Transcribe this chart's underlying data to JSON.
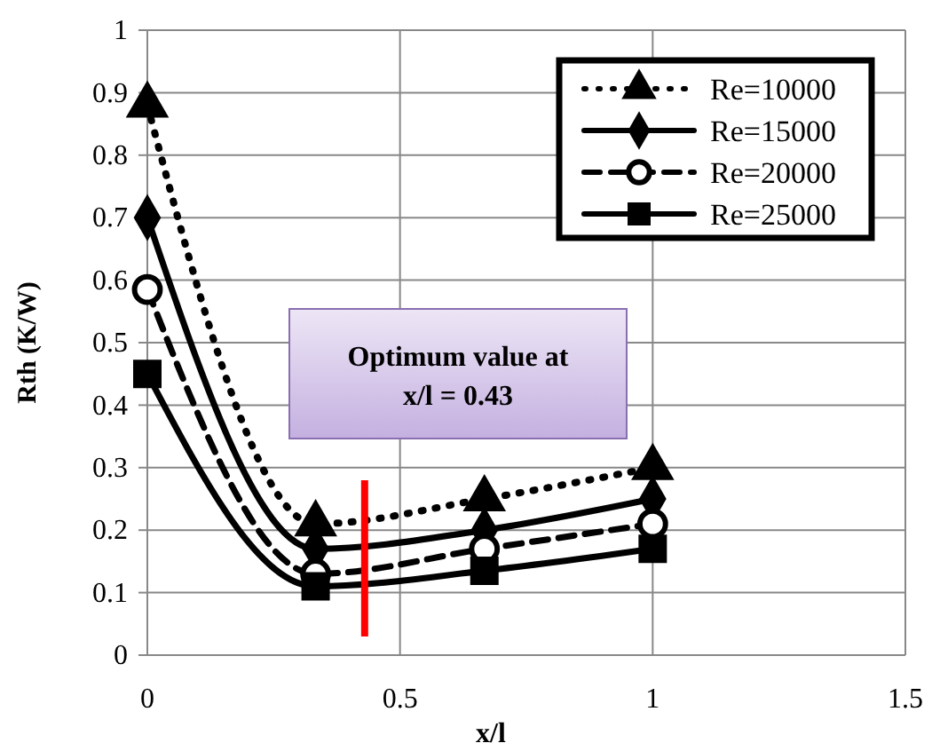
{
  "chart_data": {
    "type": "line",
    "xlabel": "x/l",
    "ylabel": "Rth (K/W)",
    "x": [
      0,
      0.333,
      0.667,
      1
    ],
    "series": [
      {
        "name": "Re=10000",
        "color": "#000000",
        "marker": "triangle",
        "line_style": "dotted",
        "values": [
          0.88,
          0.21,
          0.25,
          0.3
        ]
      },
      {
        "name": "Re=15000",
        "color": "#000000",
        "marker": "diamond",
        "line_style": "solid",
        "values": [
          0.7,
          0.17,
          0.2,
          0.25
        ]
      },
      {
        "name": "Re=20000",
        "color": "#000000",
        "marker": "circle",
        "line_style": "dashed",
        "values": [
          0.585,
          0.13,
          0.17,
          0.21
        ]
      },
      {
        "name": "Re=25000",
        "color": "#000000",
        "marker": "square",
        "line_style": "solid",
        "values": [
          0.45,
          0.11,
          0.135,
          0.17
        ]
      }
    ],
    "xlim": [
      0,
      1.5
    ],
    "xticks": [
      0,
      0.5,
      1,
      1.5
    ],
    "ylim": [
      0,
      1
    ],
    "yticks": [
      0,
      0.1,
      0.2,
      0.3,
      0.4,
      0.5,
      0.6,
      0.7,
      0.8,
      0.9,
      1
    ],
    "grid": true,
    "legend": "top right",
    "ref_lines": [
      {
        "axis": "x",
        "value": 0.43,
        "color": "#ff0000"
      }
    ],
    "annotations": [
      "Optimum value at\nx/l = 0.43"
    ]
  }
}
